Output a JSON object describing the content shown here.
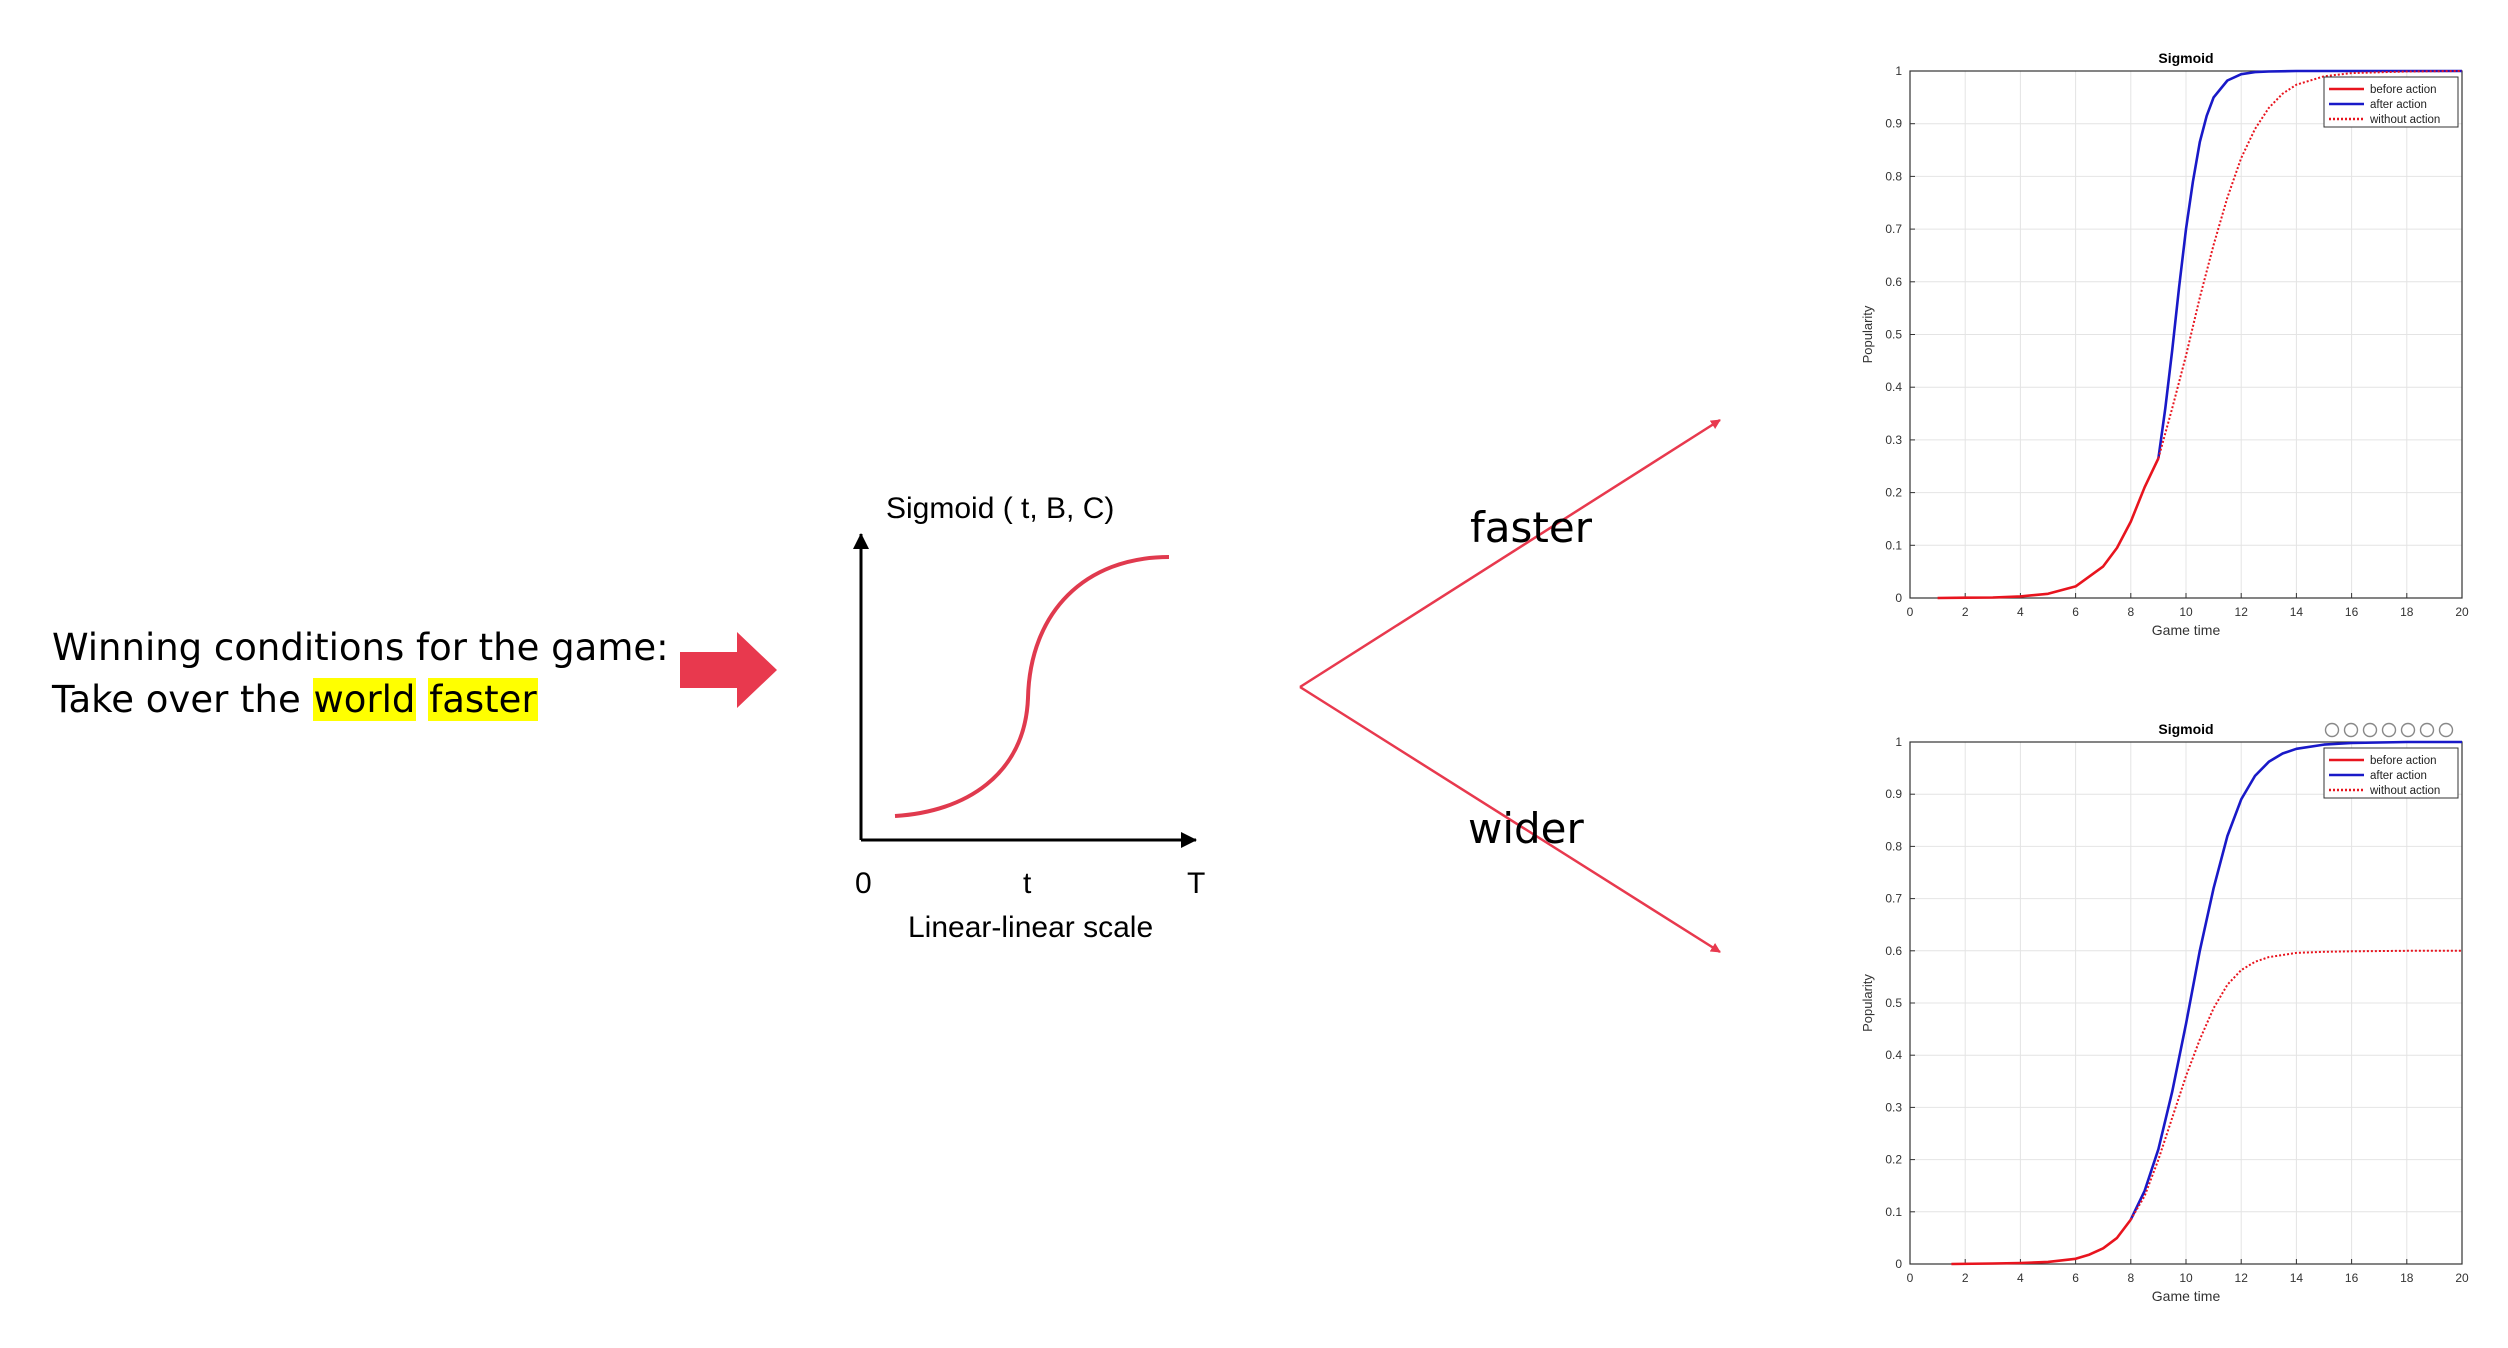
{
  "left_text": {
    "line1": "Winning conditions for the game:",
    "line2_prefix": "Take over the",
    "highlight1": "world",
    "highlight2": "faster"
  },
  "schematic": {
    "title": "Sigmoid ( t, B, C)",
    "tick_0": "0",
    "tick_t": "t",
    "tick_T": "T",
    "scale_label": "Linear-linear scale"
  },
  "branches": {
    "top_label": "faster",
    "bottom_label": "wider"
  },
  "colors": {
    "arrow": "#e8394e",
    "curve": "#e03a4e",
    "highlight": "#ffff00",
    "before_action": "#e8141e",
    "after_action": "#1919c8",
    "without_action": "#e8141e"
  },
  "charts": [
    {
      "title": "Sigmoid",
      "xlabel": "Game time",
      "ylabel": "Popularity",
      "xlim": [
        0,
        20
      ],
      "ylim": [
        0,
        1
      ],
      "xticks": [
        "0",
        "2",
        "4",
        "6",
        "8",
        "10",
        "12",
        "14",
        "16",
        "18",
        "20"
      ],
      "yticks": [
        "0",
        "0.1",
        "0.2",
        "0.3",
        "0.4",
        "0.5",
        "0.6",
        "0.7",
        "0.8",
        "0.9",
        "1"
      ],
      "legend": [
        "before action",
        "after action",
        "without action"
      ],
      "legend_position": "top-right",
      "toolbar": false
    },
    {
      "title": "Sigmoid",
      "xlabel": "Game time",
      "ylabel": "Popularity",
      "xlim": [
        0,
        20
      ],
      "ylim": [
        0,
        1
      ],
      "xticks": [
        "0",
        "2",
        "4",
        "6",
        "8",
        "10",
        "12",
        "14",
        "16",
        "18",
        "20"
      ],
      "yticks": [
        "0",
        "0.1",
        "0.2",
        "0.3",
        "0.4",
        "0.5",
        "0.6",
        "0.7",
        "0.8",
        "0.9",
        "1"
      ],
      "legend": [
        "before action",
        "after action",
        "without action"
      ],
      "legend_position": "top-right",
      "toolbar": true
    }
  ],
  "chart_data": [
    {
      "type": "line",
      "title": "Sigmoid",
      "xlabel": "Game time",
      "ylabel": "Popularity",
      "xlim": [
        0,
        20
      ],
      "ylim": [
        0,
        1
      ],
      "grid": true,
      "legend": "top-right",
      "series": [
        {
          "name": "before action",
          "style": "solid",
          "color": "#e8141e",
          "x": [
            1,
            2,
            3,
            4,
            5,
            6,
            7,
            7.5,
            8,
            8.5,
            9.0
          ],
          "y": [
            0.0,
            0.0005,
            0.001,
            0.003,
            0.008,
            0.022,
            0.06,
            0.095,
            0.145,
            0.21,
            0.265
          ]
        },
        {
          "name": "after action",
          "style": "solid",
          "color": "#1919c8",
          "x": [
            9.0,
            9.25,
            9.5,
            9.75,
            10.0,
            10.25,
            10.5,
            10.75,
            11.0,
            11.5,
            12.0,
            12.5,
            13.0,
            14.0,
            16.0,
            18.0,
            20.0
          ],
          "y": [
            0.265,
            0.36,
            0.47,
            0.59,
            0.7,
            0.79,
            0.865,
            0.915,
            0.95,
            0.982,
            0.994,
            0.998,
            0.999,
            1.0,
            1.0,
            1.0,
            1.0
          ]
        },
        {
          "name": "without action",
          "style": "dotted",
          "color": "#e8141e",
          "x": [
            9.0,
            9.5,
            10.0,
            10.5,
            11.0,
            11.5,
            12.0,
            12.5,
            13.0,
            13.5,
            14.0,
            15.0,
            16.0,
            18.0,
            20.0
          ],
          "y": [
            0.265,
            0.36,
            0.46,
            0.57,
            0.67,
            0.76,
            0.835,
            0.89,
            0.93,
            0.957,
            0.974,
            0.99,
            0.996,
            0.999,
            1.0
          ]
        }
      ]
    },
    {
      "type": "line",
      "title": "Sigmoid",
      "xlabel": "Game time",
      "ylabel": "Popularity",
      "xlim": [
        0,
        20
      ],
      "ylim": [
        0,
        1
      ],
      "grid": true,
      "legend": "top-right",
      "series": [
        {
          "name": "before action",
          "style": "solid",
          "color": "#e8141e",
          "x": [
            1.5,
            3,
            4,
            5,
            6,
            6.5,
            7,
            7.5,
            8
          ],
          "y": [
            0.0,
            0.001,
            0.002,
            0.004,
            0.01,
            0.018,
            0.03,
            0.05,
            0.085
          ]
        },
        {
          "name": "after action",
          "style": "solid",
          "color": "#1919c8",
          "x": [
            8,
            8.5,
            9,
            9.5,
            10,
            10.5,
            11,
            11.5,
            12,
            12.5,
            13,
            13.5,
            14,
            15,
            16,
            17,
            18,
            20
          ],
          "y": [
            0.085,
            0.14,
            0.22,
            0.33,
            0.46,
            0.6,
            0.72,
            0.82,
            0.89,
            0.935,
            0.962,
            0.978,
            0.987,
            0.995,
            0.998,
            0.999,
            1.0,
            1.0
          ]
        },
        {
          "name": "without action",
          "style": "dotted",
          "color": "#e8141e",
          "x": [
            8,
            8.5,
            9,
            9.5,
            10,
            10.5,
            11,
            11.5,
            12,
            12.5,
            13,
            14,
            15,
            16,
            18,
            20
          ],
          "y": [
            0.085,
            0.13,
            0.2,
            0.28,
            0.36,
            0.43,
            0.49,
            0.535,
            0.563,
            0.579,
            0.588,
            0.596,
            0.598,
            0.599,
            0.6,
            0.6
          ]
        }
      ]
    }
  ]
}
